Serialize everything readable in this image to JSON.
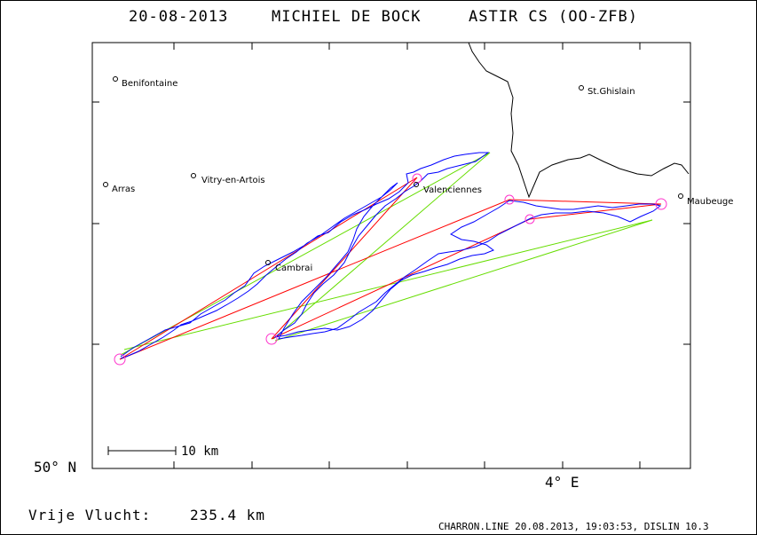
{
  "header": {
    "date": "20-08-2013",
    "pilot": "MICHIEL DE BOCK",
    "glider": "ASTIR CS (OO-ZFB)"
  },
  "axes": {
    "lat_label": "50° N",
    "lon_label": "4° E"
  },
  "places": [
    {
      "name": "Benifontaine"
    },
    {
      "name": "St.Ghislain"
    },
    {
      "name": "Arras"
    },
    {
      "name": "Vitry-en-Artois"
    },
    {
      "name": "Valenciennes"
    },
    {
      "name": "Maubeuge"
    },
    {
      "name": "Cambrai"
    }
  ],
  "scale_bar": {
    "label": "10 km"
  },
  "flight": {
    "label": "Vrije Vlucht:",
    "distance": "235.4 km"
  },
  "footer": {
    "text": "CHARRON.LINE 20.08.2013, 19:03:53, DISLIN 10.3"
  },
  "colors": {
    "track": "#0000ff",
    "task": "#ff0000",
    "alt": "#66dd00",
    "turnpoint": "#ff33cc",
    "border": "#000000"
  }
}
